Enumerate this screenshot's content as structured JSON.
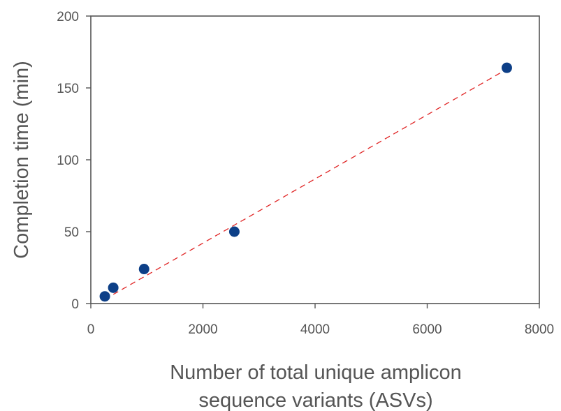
{
  "chart_data": {
    "type": "scatter",
    "title": "",
    "xlabel_lines": [
      "Number of total unique amplicon",
      "sequence variants (ASVs)"
    ],
    "ylabel": "Completion time (min)",
    "xlim": [
      0,
      8000
    ],
    "ylim": [
      0,
      200
    ],
    "xticks": [
      0,
      2000,
      4000,
      6000,
      8000
    ],
    "yticks": [
      0,
      50,
      100,
      150,
      200
    ],
    "xtick_labels": [
      "0",
      "2000",
      "4000",
      "6000",
      "8000"
    ],
    "ytick_labels": [
      "0",
      "50",
      "100",
      "150",
      "200"
    ],
    "grid": false,
    "legend": "none",
    "series": [
      {
        "x": [
          250,
          400,
          950,
          2560,
          7420
        ],
        "y": [
          5,
          11,
          24,
          50,
          164
        ],
        "marker_color": "#0d3f87"
      }
    ],
    "fit_line": {
      "x": [
        250,
        7420
      ],
      "y": [
        3,
        163
      ],
      "style": "dashed",
      "color": "#e02424"
    },
    "colors": {
      "axis": "#555555",
      "text": "#555555",
      "background": "#ffffff"
    }
  }
}
